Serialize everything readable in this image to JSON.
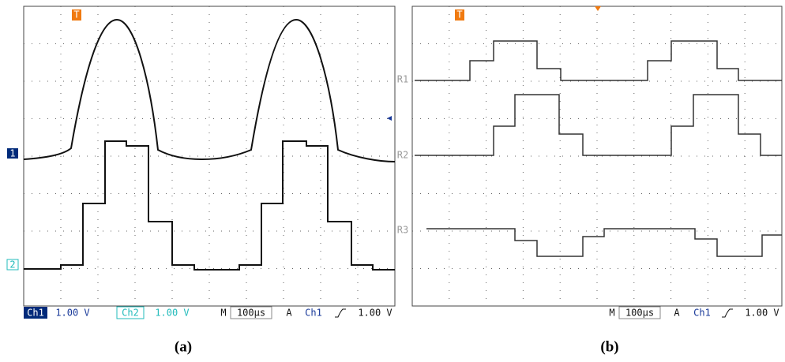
{
  "panel_a": {
    "trigger_marker": "T",
    "channel_markers": [
      "1",
      "2"
    ],
    "status_bar": [
      "Ch1",
      "1.00 V",
      "Ch2",
      "1.00 V",
      "M",
      "100µs",
      "A",
      "Ch1",
      "1.00 V"
    ],
    "caption": "(a)"
  },
  "panel_b": {
    "trigger_marker": "T",
    "channel_markers": [
      "R1",
      "R2",
      "R3"
    ],
    "status_bar": [
      "M",
      "100µs",
      "A",
      "Ch1",
      "1.00 V"
    ],
    "caption": "(b)"
  }
}
